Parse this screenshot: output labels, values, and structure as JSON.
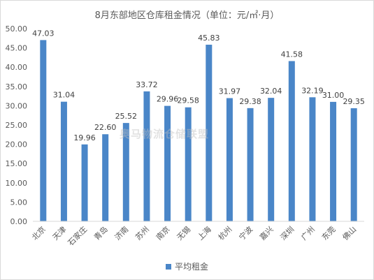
{
  "chart_data": {
    "type": "bar",
    "title": "8月东部地区仓库租金情况（单位：元/㎡·月）",
    "categories": [
      "北京",
      "天津",
      "石家庄",
      "青岛",
      "济南",
      "苏州",
      "南京",
      "无锡",
      "上海",
      "杭州",
      "宁波",
      "嘉兴",
      "深圳",
      "广州",
      "东莞",
      "佛山"
    ],
    "series": [
      {
        "name": "平均租金",
        "values": [
          47.03,
          31.04,
          19.96,
          22.6,
          25.52,
          33.72,
          29.96,
          29.58,
          45.83,
          31.97,
          29.38,
          32.04,
          41.58,
          32.19,
          31.0,
          29.35
        ],
        "labels": [
          "47.03",
          "31.04",
          "19.96",
          "22.60",
          "25.52",
          "33.72",
          "29.96",
          "29.58",
          "45.83",
          "31.97",
          "29.38",
          "32.04",
          "41.58",
          "32.19",
          "31.00",
          "29.35"
        ],
        "color": "#4a86c8"
      }
    ],
    "ylim": [
      0,
      50
    ],
    "yticks": [
      "0.00",
      "5.00",
      "10.00",
      "15.00",
      "20.00",
      "25.00",
      "30.00",
      "35.00",
      "40.00",
      "45.00",
      "50.00"
    ],
    "xlabel": "",
    "ylabel": "",
    "grid": false,
    "legend_position": "bottom"
  },
  "watermark": "奥马物流仓储联盟 www.ym56.com"
}
